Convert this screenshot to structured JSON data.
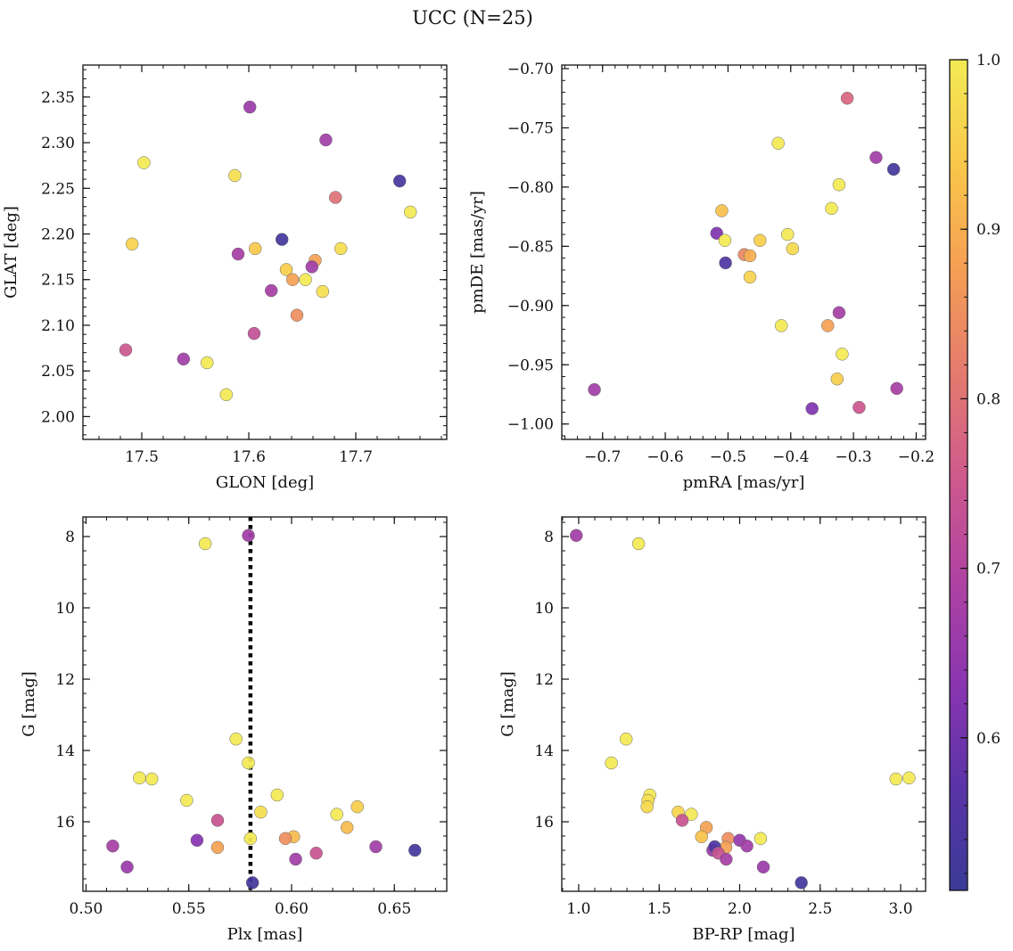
{
  "title": "UCC (N=25)",
  "colorbar": {
    "min": 0.51,
    "max": 1.0,
    "ticks": [
      0.6,
      0.7,
      0.8,
      0.9,
      1.0
    ],
    "tick_labels": [
      "0.6",
      "0.7",
      "0.8",
      "0.9",
      "1.0"
    ],
    "colors": [
      "#3a3b96",
      "#5a33a8",
      "#8a35b0",
      "#b043a2",
      "#cf5a8c",
      "#e57b6e",
      "#f59f54",
      "#f9c74a",
      "#f3ea55"
    ]
  },
  "chart_data": [
    {
      "type": "scatter",
      "xlabel": "GLON [deg]",
      "ylabel": "GLAT [deg]",
      "xlim": [
        17.445,
        17.785
      ],
      "ylim": [
        1.975,
        2.385
      ],
      "xticks": [
        17.5,
        17.6,
        17.7
      ],
      "xtick_labels": [
        "17.5",
        "17.6",
        "17.7"
      ],
      "yticks": [
        2.0,
        2.05,
        2.1,
        2.15,
        2.2,
        2.25,
        2.3,
        2.35
      ],
      "ytick_labels": [
        "2.00",
        "2.05",
        "2.10",
        "2.15",
        "2.20",
        "2.25",
        "2.30",
        "2.35"
      ],
      "x": [
        17.601,
        17.672,
        17.502,
        17.587,
        17.741,
        17.681,
        17.751,
        17.491,
        17.606,
        17.631,
        17.59,
        17.686,
        17.662,
        17.635,
        17.659,
        17.641,
        17.653,
        17.669,
        17.621,
        17.645,
        17.485,
        17.605,
        17.539,
        17.561,
        17.579
      ],
      "y": [
        2.339,
        2.303,
        2.278,
        2.264,
        2.258,
        2.24,
        2.224,
        2.189,
        2.184,
        2.194,
        2.178,
        2.184,
        2.171,
        2.161,
        2.164,
        2.15,
        2.15,
        2.137,
        2.138,
        2.111,
        2.073,
        2.091,
        2.063,
        2.059,
        2.024
      ],
      "c": [
        0.66,
        0.67,
        1.0,
        0.98,
        0.54,
        0.8,
        1.0,
        0.96,
        0.94,
        0.53,
        0.68,
        0.98,
        0.88,
        0.95,
        0.67,
        0.88,
        1.0,
        0.98,
        0.68,
        0.85,
        0.75,
        0.73,
        0.67,
        1.0,
        1.0
      ]
    },
    {
      "type": "scatter",
      "xlabel": "pmRA [mas/yr]",
      "ylabel": "pmDE [mas/yr]",
      "xlim": [
        -0.765,
        -0.185
      ],
      "ylim": [
        -1.013,
        -0.697
      ],
      "xticks": [
        -0.7,
        -0.6,
        -0.5,
        -0.4,
        -0.3,
        -0.2
      ],
      "xtick_labels": [
        "−0.7",
        "−0.6",
        "−0.5",
        "−0.4",
        "−0.3",
        "−0.2"
      ],
      "yticks": [
        -1.0,
        -0.95,
        -0.9,
        -0.85,
        -0.8,
        -0.75,
        -0.7
      ],
      "ytick_labels": [
        "−1.00",
        "−0.95",
        "−0.90",
        "−0.85",
        "−0.80",
        "−0.75",
        "−0.70"
      ],
      "x": [
        -0.31,
        -0.42,
        -0.264,
        -0.236,
        -0.323,
        -0.335,
        -0.51,
        -0.518,
        -0.505,
        -0.405,
        -0.449,
        -0.397,
        -0.474,
        -0.465,
        -0.504,
        -0.465,
        -0.415,
        -0.341,
        -0.323,
        -0.318,
        -0.326,
        -0.713,
        -0.231,
        -0.366,
        -0.291
      ],
      "y": [
        -0.725,
        -0.763,
        -0.775,
        -0.785,
        -0.798,
        -0.818,
        -0.82,
        -0.839,
        -0.845,
        -0.84,
        -0.845,
        -0.852,
        -0.857,
        -0.858,
        -0.864,
        -0.876,
        -0.917,
        -0.917,
        -0.906,
        -0.941,
        -0.962,
        -0.971,
        -0.97,
        -0.987,
        -0.986
      ],
      "c": [
        0.78,
        1.0,
        0.67,
        0.53,
        1.0,
        1.0,
        0.93,
        0.62,
        1.0,
        1.0,
        0.95,
        0.97,
        0.84,
        0.9,
        0.55,
        0.96,
        1.0,
        0.88,
        0.68,
        1.0,
        0.95,
        0.67,
        0.68,
        0.62,
        0.75
      ]
    },
    {
      "type": "scatter",
      "xlabel": "Plx [mas]",
      "ylabel": "G [mag]",
      "xlim": [
        0.4985,
        0.6755
      ],
      "ylim": [
        17.95,
        7.45
      ],
      "xticks": [
        0.5,
        0.55,
        0.6,
        0.65
      ],
      "xtick_labels": [
        "0.50",
        "0.55",
        "0.60",
        "0.65"
      ],
      "yticks": [
        8,
        10,
        12,
        14,
        16
      ],
      "ytick_labels": [
        "8",
        "10",
        "12",
        "14",
        "16"
      ],
      "vline": 0.58,
      "x": [
        0.558,
        0.579,
        0.573,
        0.579,
        0.526,
        0.532,
        0.549,
        0.593,
        0.632,
        0.622,
        0.585,
        0.564,
        0.627,
        0.58,
        0.601,
        0.597,
        0.554,
        0.564,
        0.641,
        0.513,
        0.66,
        0.612,
        0.602,
        0.52,
        0.581
      ],
      "y": [
        8.2,
        7.97,
        13.68,
        14.35,
        14.77,
        14.8,
        15.4,
        15.25,
        15.58,
        15.79,
        15.73,
        15.96,
        16.16,
        16.47,
        16.42,
        16.47,
        16.52,
        16.72,
        16.7,
        16.68,
        16.8,
        16.88,
        17.05,
        17.27,
        17.71
      ],
      "c": [
        1.0,
        0.67,
        1.0,
        1.0,
        1.0,
        1.0,
        1.0,
        1.0,
        0.95,
        1.0,
        0.98,
        0.74,
        0.92,
        1.0,
        0.92,
        0.85,
        0.63,
        0.88,
        0.67,
        0.68,
        0.53,
        0.74,
        0.67,
        0.66,
        0.53
      ]
    },
    {
      "type": "scatter",
      "xlabel": "BP-RP [mag]",
      "ylabel": "G [mag]",
      "xlim": [
        0.895,
        3.155
      ],
      "ylim": [
        17.95,
        7.45
      ],
      "xticks": [
        1.0,
        1.5,
        2.0,
        2.5,
        3.0
      ],
      "xtick_labels": [
        "1.0",
        "1.5",
        "2.0",
        "2.5",
        "3.0"
      ],
      "yticks": [
        8,
        10,
        12,
        14,
        16
      ],
      "ytick_labels": [
        "8",
        "10",
        "12",
        "14",
        "16"
      ],
      "x": [
        0.985,
        1.372,
        1.295,
        1.203,
        3.052,
        2.971,
        1.442,
        1.43,
        1.425,
        1.7,
        1.618,
        1.643,
        1.793,
        1.928,
        2.13,
        1.914,
        1.763,
        1.833,
        2.0,
        1.845,
        2.045,
        1.868,
        1.916,
        2.147,
        2.383
      ],
      "y": [
        7.97,
        8.2,
        13.68,
        14.35,
        14.77,
        14.8,
        15.25,
        15.4,
        15.58,
        15.79,
        15.73,
        15.96,
        16.16,
        16.47,
        16.47,
        16.72,
        16.42,
        16.8,
        16.52,
        16.7,
        16.68,
        16.88,
        17.05,
        17.27,
        17.71
      ],
      "c": [
        0.67,
        1.0,
        1.0,
        1.0,
        1.0,
        1.0,
        1.0,
        0.98,
        0.97,
        1.0,
        0.96,
        0.74,
        0.88,
        0.85,
        1.0,
        0.88,
        0.93,
        0.66,
        0.65,
        0.55,
        0.67,
        0.74,
        0.68,
        0.66,
        0.53
      ]
    }
  ]
}
